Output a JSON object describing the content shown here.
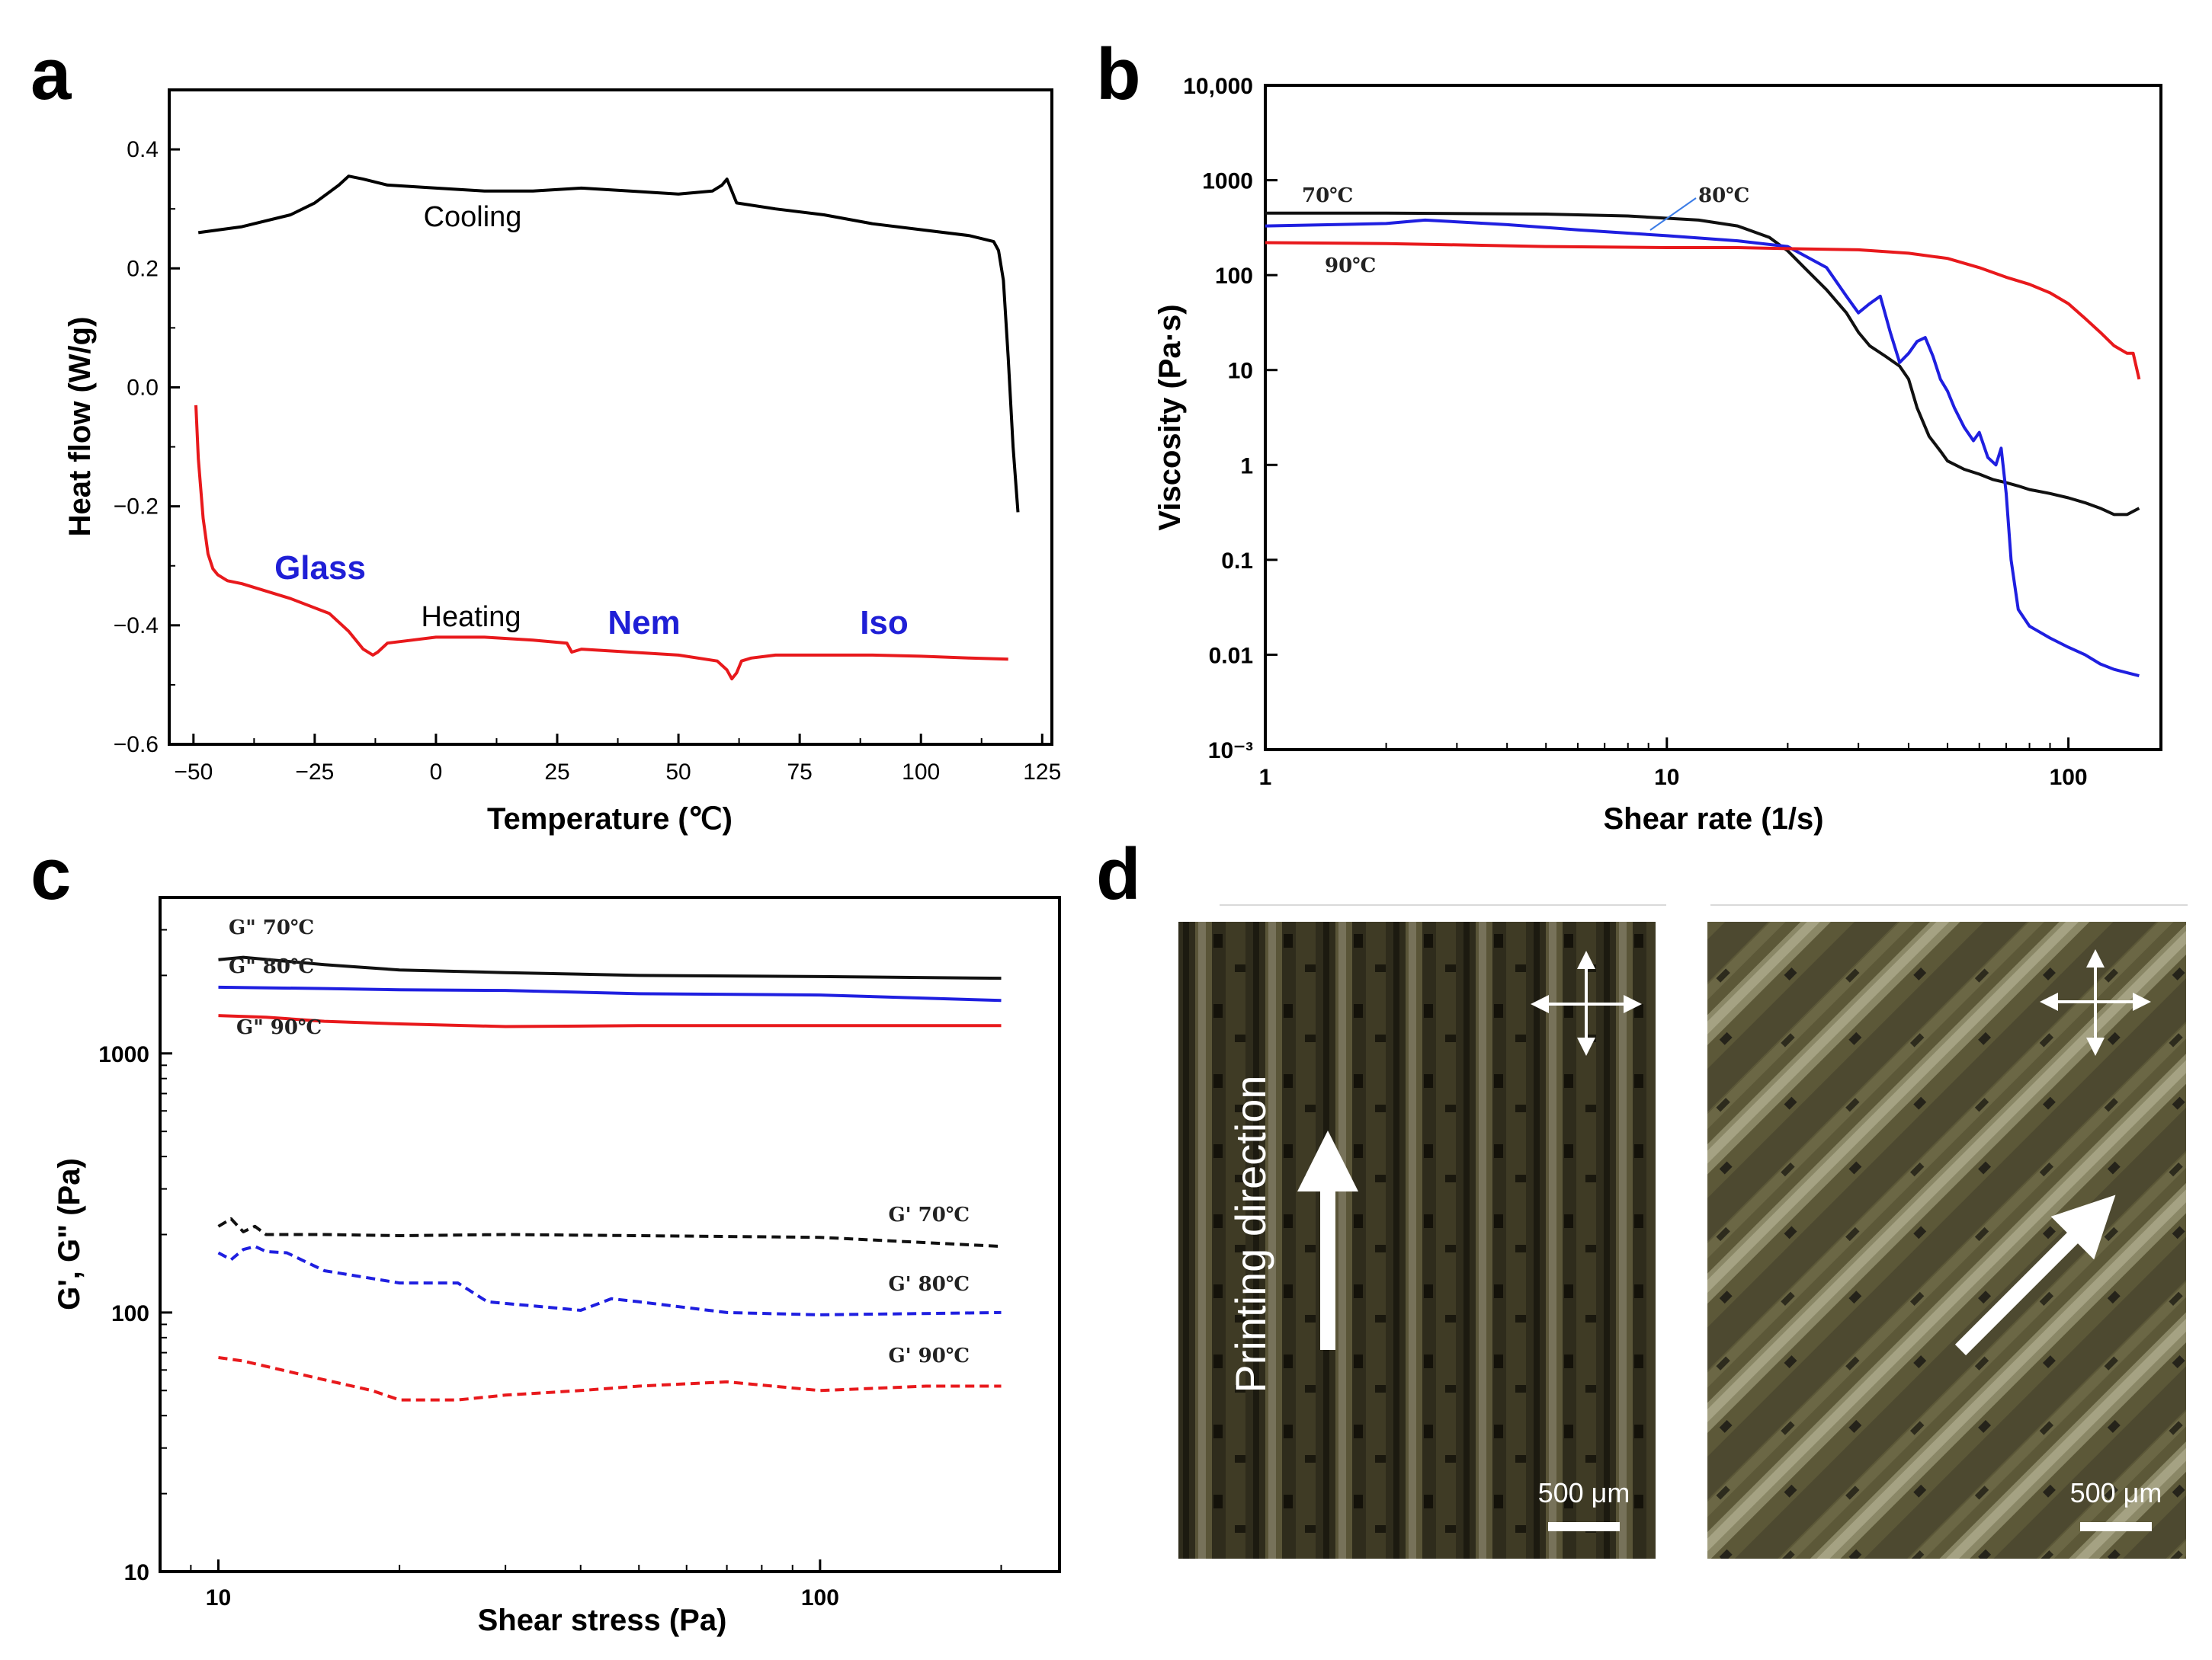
{
  "panels": {
    "a": "a",
    "b": "b",
    "c": "c",
    "d": "d"
  },
  "colors": {
    "cooling": "#000000",
    "heating": "#e8191c",
    "black": "#111111",
    "blue": "#1f1fe0",
    "red": "#e8191c",
    "phase": "#1f1fd6"
  },
  "chart_data": [
    {
      "panel": "a",
      "type": "line",
      "xlabel": "Temperature (℃)",
      "ylabel": "Heat flow (W/g)",
      "xlim": [
        -55,
        127
      ],
      "ylim": [
        -0.6,
        0.5
      ],
      "xticks": [
        -50,
        -25,
        0,
        25,
        50,
        75,
        100,
        125
      ],
      "xtick_labels": [
        "−50",
        "−25",
        "0",
        "25",
        "50",
        "75",
        "100",
        "125"
      ],
      "yticks": [
        -0.6,
        -0.4,
        -0.2,
        0.0,
        0.2,
        0.4
      ],
      "ytick_labels": [
        "−0.6",
        "−0.4",
        "−0.2",
        "0.0",
        "0.2",
        "0.4"
      ],
      "series": [
        {
          "name": "Cooling",
          "x": [
            -49,
            -40,
            -30,
            -25,
            -20,
            -18,
            -15,
            -10,
            0,
            10,
            20,
            30,
            40,
            50,
            57,
            59,
            60,
            61,
            62,
            70,
            80,
            90,
            100,
            110,
            115,
            116,
            117,
            118,
            119,
            120
          ],
          "y": [
            0.26,
            0.27,
            0.29,
            0.31,
            0.34,
            0.355,
            0.35,
            0.34,
            0.335,
            0.33,
            0.33,
            0.335,
            0.33,
            0.325,
            0.33,
            0.34,
            0.35,
            0.33,
            0.31,
            0.3,
            0.29,
            0.275,
            0.265,
            0.255,
            0.245,
            0.23,
            0.18,
            0.05,
            -0.1,
            -0.21
          ]
        },
        {
          "name": "Heating",
          "x": [
            -49.5,
            -49,
            -48,
            -47,
            -46,
            -45,
            -43,
            -40,
            -30,
            -22,
            -18,
            -15,
            -13,
            -12,
            -10,
            -5,
            0,
            10,
            20,
            27,
            28,
            30,
            40,
            50,
            58,
            60,
            61,
            62,
            63,
            65,
            70,
            80,
            90,
            100,
            110,
            118
          ],
          "y": [
            -0.03,
            -0.12,
            -0.22,
            -0.28,
            -0.305,
            -0.315,
            -0.325,
            -0.33,
            -0.355,
            -0.38,
            -0.41,
            -0.44,
            -0.45,
            -0.445,
            -0.43,
            -0.425,
            -0.42,
            -0.42,
            -0.425,
            -0.43,
            -0.445,
            -0.44,
            -0.445,
            -0.45,
            -0.46,
            -0.475,
            -0.49,
            -0.48,
            -0.46,
            -0.455,
            -0.45,
            -0.45,
            -0.45,
            -0.452,
            -0.455,
            -0.457
          ]
        }
      ],
      "annotations": {
        "cooling": "Cooling",
        "heating": "Heating",
        "glass": "Glass",
        "nem": "Nem",
        "iso": "Iso"
      }
    },
    {
      "panel": "b",
      "type": "line",
      "scale": "log-log",
      "xlabel": "Shear rate (1/s)",
      "ylabel": "Viscosity (Pa·s)",
      "xlim": [
        1,
        170
      ],
      "ylim": [
        0.001,
        10000
      ],
      "xticks": [
        1,
        10,
        100
      ],
      "xtick_labels": [
        "1",
        "10",
        "100"
      ],
      "yticks": [
        0.001,
        0.01,
        0.1,
        1,
        10,
        100,
        1000,
        10000
      ],
      "ytick_labels": [
        "10⁻³",
        "0.01",
        "0.1",
        "1",
        "10",
        "100",
        "1000",
        "10,000"
      ],
      "series": [
        {
          "name": "70℃",
          "x": [
            1,
            2,
            5,
            8,
            12,
            15,
            18,
            20,
            22,
            25,
            28,
            30,
            32,
            35,
            38,
            40,
            42,
            45,
            48,
            50,
            55,
            60,
            65,
            70,
            75,
            80,
            90,
            100,
            110,
            120,
            130,
            140,
            150
          ],
          "y": [
            450,
            450,
            440,
            420,
            380,
            330,
            250,
            180,
            120,
            70,
            40,
            25,
            18,
            14,
            11,
            8,
            4,
            2,
            1.4,
            1.1,
            0.9,
            0.8,
            0.7,
            0.65,
            0.6,
            0.55,
            0.5,
            0.45,
            0.4,
            0.35,
            0.3,
            0.3,
            0.35
          ]
        },
        {
          "name": "80℃",
          "x": [
            1,
            2,
            2.5,
            4,
            6,
            10,
            15,
            20,
            25,
            28,
            30,
            32,
            34,
            36,
            38,
            40,
            42,
            44,
            46,
            48,
            50,
            52,
            55,
            58,
            60,
            63,
            66,
            68,
            70,
            72,
            75,
            80,
            90,
            100,
            110,
            120,
            130,
            150
          ],
          "y": [
            330,
            350,
            380,
            340,
            300,
            260,
            230,
            200,
            120,
            60,
            40,
            50,
            60,
            25,
            12,
            15,
            20,
            22,
            14,
            8,
            6,
            4,
            2.5,
            1.8,
            2.2,
            1.2,
            1.0,
            1.5,
            0.5,
            0.1,
            0.03,
            0.02,
            0.015,
            0.012,
            0.01,
            0.008,
            0.007,
            0.006
          ]
        },
        {
          "name": "90℃",
          "x": [
            1,
            2,
            5,
            10,
            15,
            20,
            30,
            40,
            50,
            60,
            70,
            80,
            90,
            100,
            110,
            120,
            130,
            140,
            145,
            150
          ],
          "y": [
            220,
            215,
            200,
            195,
            195,
            190,
            185,
            170,
            150,
            120,
            95,
            80,
            65,
            50,
            35,
            25,
            18,
            15,
            15,
            8
          ]
        }
      ],
      "annotations": {
        "label70": "70℃",
        "label80": "80℃",
        "label90": "90℃"
      }
    },
    {
      "panel": "c",
      "type": "line",
      "scale": "log-log",
      "xlabel": "Shear stress (Pa)",
      "ylabel": "G', G\" (Pa)",
      "xlim": [
        8,
        250
      ],
      "ylim": [
        10,
        4000
      ],
      "xticks": [
        10,
        100
      ],
      "xtick_labels": [
        "10",
        "100"
      ],
      "yticks": [
        10,
        100,
        1000
      ],
      "ytick_labels": [
        "10",
        "100",
        "1000"
      ],
      "series": [
        {
          "name": "G\" 70℃",
          "style": "solid",
          "color": "black",
          "x": [
            10,
            11,
            15,
            20,
            30,
            50,
            100,
            200
          ],
          "y": [
            2300,
            2350,
            2200,
            2100,
            2050,
            2000,
            1980,
            1950
          ]
        },
        {
          "name": "G\" 80℃",
          "style": "solid",
          "color": "blue",
          "x": [
            10,
            15,
            20,
            30,
            50,
            100,
            200
          ],
          "y": [
            1800,
            1780,
            1760,
            1750,
            1700,
            1680,
            1600
          ]
        },
        {
          "name": "G\" 90℃",
          "style": "solid",
          "color": "red",
          "x": [
            10,
            12,
            15,
            20,
            30,
            50,
            100,
            200
          ],
          "y": [
            1400,
            1380,
            1330,
            1300,
            1270,
            1280,
            1280,
            1280
          ]
        },
        {
          "name": "G' 70℃",
          "style": "dashed",
          "color": "black",
          "x": [
            10,
            10.5,
            11,
            11.5,
            12,
            15,
            20,
            30,
            50,
            100,
            200
          ],
          "y": [
            215,
            230,
            205,
            215,
            200,
            200,
            198,
            200,
            198,
            195,
            180
          ]
        },
        {
          "name": "G' 80℃",
          "style": "dashed",
          "color": "blue",
          "x": [
            10,
            10.5,
            11,
            11.5,
            12,
            13,
            15,
            20,
            25,
            28,
            35,
            40,
            45,
            50,
            70,
            100,
            200
          ],
          "y": [
            170,
            160,
            175,
            180,
            172,
            170,
            145,
            130,
            130,
            110,
            105,
            102,
            113,
            110,
            100,
            98,
            100
          ]
        },
        {
          "name": "G' 90℃",
          "style": "dashed",
          "color": "red",
          "x": [
            10,
            11,
            12,
            15,
            18,
            20,
            25,
            30,
            40,
            50,
            70,
            100,
            150,
            200
          ],
          "y": [
            67,
            65,
            62,
            55,
            50,
            46,
            46,
            48,
            50,
            52,
            54,
            50,
            52,
            52
          ]
        }
      ]
    }
  ],
  "micrographs": {
    "left": {
      "scale_bar": "500 μm",
      "direction_label": "Printing direction"
    },
    "right": {
      "scale_bar": "500 μm"
    }
  }
}
